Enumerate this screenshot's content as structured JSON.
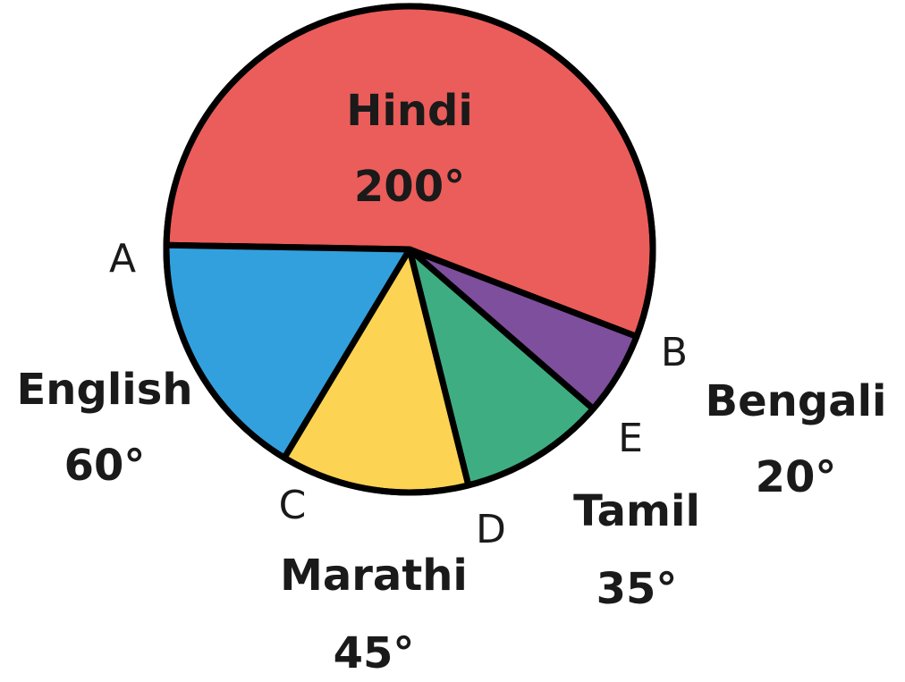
{
  "chart_data": {
    "type": "pie",
    "unit": "°",
    "slices": [
      {
        "key": "hindi",
        "category": "Hindi",
        "value": 200,
        "value_label": "200°",
        "color": "#EB5D5A"
      },
      {
        "key": "english",
        "category": "English",
        "value": 60,
        "value_label": "60°",
        "color": "#33A0DE"
      },
      {
        "key": "marathi",
        "category": "Marathi",
        "value": 45,
        "value_label": "45°",
        "color": "#FDD353"
      },
      {
        "key": "tamil",
        "category": "Tamil",
        "value": 35,
        "value_label": "35°",
        "color": "#3EAE82"
      },
      {
        "key": "bengali",
        "category": "Bengali",
        "value": 20,
        "value_label": "20°",
        "color": "#7E4F9C"
      }
    ],
    "points": [
      {
        "key": "a",
        "label": "A"
      },
      {
        "key": "b",
        "label": "B"
      },
      {
        "key": "c",
        "label": "C"
      },
      {
        "key": "d",
        "label": "D"
      },
      {
        "key": "e",
        "label": "E"
      }
    ]
  }
}
